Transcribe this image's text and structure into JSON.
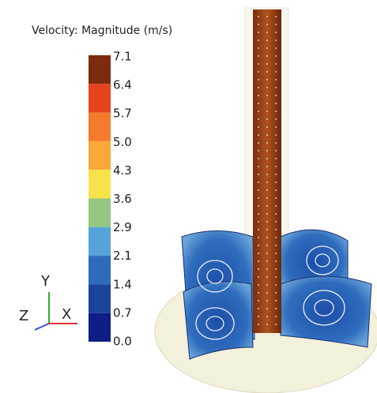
{
  "legend": {
    "title": "Velocity: Magnitude (m/s)",
    "ticks": [
      "7.1",
      "6.4",
      "5.7",
      "5.0",
      "4.3",
      "3.6",
      "2.9",
      "2.1",
      "1.4",
      "0.7",
      "0.0"
    ]
  },
  "triad": {
    "y": "Y",
    "z": "Z",
    "x": "X"
  }
}
